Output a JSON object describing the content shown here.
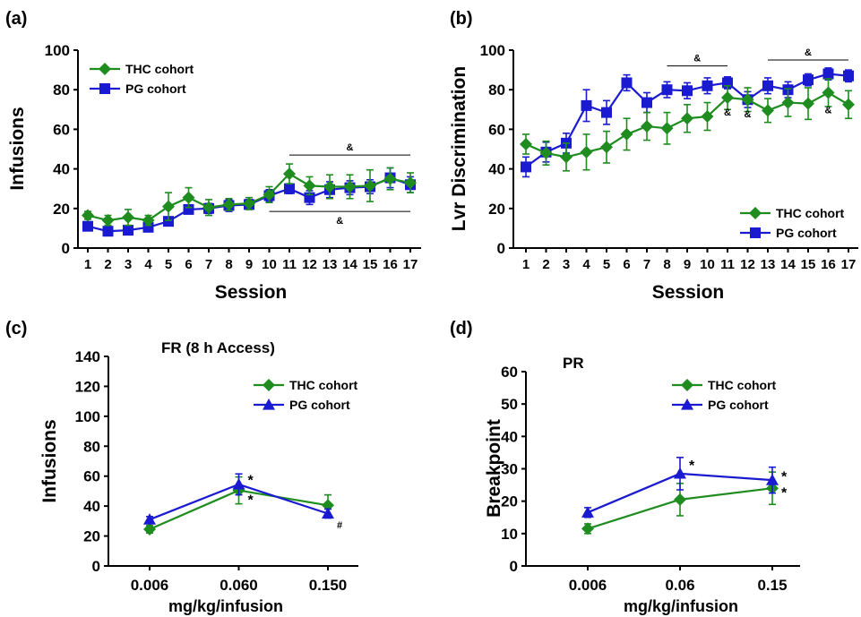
{
  "colors": {
    "thc": "#1e8c1e",
    "pg": "#1a1ad0",
    "axis": "#000000"
  },
  "chart_data": [
    {
      "id": "a",
      "type": "line",
      "panel_label": "(a)",
      "title": "",
      "xlabel": "Session",
      "ylabel": "Infusions",
      "ylim": [
        0,
        100
      ],
      "yticks": [
        "0",
        "20",
        "40",
        "60",
        "80",
        "100"
      ],
      "categories": [
        "1",
        "2",
        "3",
        "4",
        "5",
        "6",
        "7",
        "8",
        "9",
        "10",
        "11",
        "12",
        "13",
        "14",
        "15",
        "16",
        "17"
      ],
      "legend_position": "top-left",
      "grid": false,
      "series": [
        {
          "name": "THC cohort",
          "marker": "diamond",
          "color": "#1e8c1e",
          "values": [
            16.5,
            14,
            15.5,
            14,
            21,
            25.5,
            20.5,
            22,
            22.5,
            27,
            37.5,
            31.5,
            31,
            31,
            31.5,
            35,
            33
          ],
          "errors": [
            2,
            2.5,
            4,
            2.5,
            7,
            5,
            4,
            3,
            3,
            4,
            5,
            4.5,
            6,
            6,
            8,
            5.5,
            5
          ]
        },
        {
          "name": "PG cohort",
          "marker": "square",
          "color": "#1a1ad0",
          "values": [
            11,
            8.5,
            9,
            10.5,
            13.5,
            19.5,
            20,
            21.5,
            22,
            26.5,
            30,
            25.5,
            29.5,
            30.5,
            31,
            35.5,
            32
          ],
          "errors": [
            2,
            1.5,
            2,
            2,
            2,
            2,
            2.5,
            3,
            2.5,
            3,
            2.5,
            3.5,
            4,
            3.5,
            3.5,
            5,
            4
          ]
        }
      ],
      "annotations": [
        {
          "text": "&",
          "x_from": 11,
          "x_to": 17,
          "y": 47
        },
        {
          "text": "&",
          "x_from": 10,
          "x_to": 17,
          "y": 18.5
        }
      ]
    },
    {
      "id": "b",
      "type": "line",
      "panel_label": "(b)",
      "title": "",
      "xlabel": "Session",
      "ylabel": "Lvr Discrimination",
      "ylim": [
        0,
        100
      ],
      "yticks": [
        "0",
        "20",
        "40",
        "60",
        "80",
        "100"
      ],
      "categories": [
        "1",
        "2",
        "3",
        "4",
        "5",
        "6",
        "7",
        "8",
        "9",
        "10",
        "11",
        "12",
        "13",
        "14",
        "15",
        "16",
        "17"
      ],
      "legend_position": "bottom-right",
      "grid": false,
      "series": [
        {
          "name": "THC cohort",
          "marker": "diamond",
          "color": "#1e8c1e",
          "values": [
            52.5,
            48,
            46,
            48.5,
            51,
            57.5,
            61.5,
            60.5,
            65.5,
            66.5,
            76,
            75,
            69.5,
            73.5,
            73,
            78.5,
            72.5
          ],
          "errors": [
            5,
            6,
            7,
            9,
            8,
            8,
            7,
            8,
            7,
            7,
            6,
            6,
            6,
            7,
            8,
            7,
            7
          ]
        },
        {
          "name": "PG cohort",
          "marker": "square",
          "color": "#1a1ad0",
          "values": [
            41,
            48.5,
            53,
            72,
            68.5,
            83.5,
            73.5,
            80,
            79.5,
            82,
            83.5,
            75,
            82,
            80,
            85,
            88,
            87
          ],
          "errors": [
            5,
            5,
            5,
            8,
            6,
            4,
            5,
            4,
            4,
            4,
            3,
            4,
            4,
            4,
            3,
            3,
            3
          ]
        }
      ],
      "annotations": [
        {
          "text": "&",
          "x_from": 8,
          "x_to": 11,
          "y": 92
        },
        {
          "text": "&",
          "x_from": 13,
          "x_to": 17,
          "y": 95
        },
        {
          "text": "&",
          "x": 11,
          "y": 67
        },
        {
          "text": "&",
          "x": 12,
          "y": 66
        },
        {
          "text": "&",
          "x": 16,
          "y": 68
        }
      ]
    },
    {
      "id": "c",
      "type": "line",
      "panel_label": "(c)",
      "title": "FR (8 h Access)",
      "xlabel": "mg/kg/infusion",
      "ylabel": "Infusions",
      "ylim": [
        0,
        140
      ],
      "yticks": [
        "0",
        "20",
        "40",
        "60",
        "80",
        "100",
        "120",
        "140"
      ],
      "categories": [
        "0.006",
        "0.060",
        "0.150"
      ],
      "legend_position": "top-right",
      "grid": false,
      "series": [
        {
          "name": "THC cohort",
          "marker": "diamond",
          "color": "#1e8c1e",
          "values": [
            24.5,
            50.5,
            40.5
          ],
          "errors": [
            2.5,
            9,
            7
          ]
        },
        {
          "name": "PG cohort",
          "marker": "triangle",
          "color": "#1a1ad0",
          "values": [
            31,
            54.5,
            35
          ],
          "errors": [
            2,
            7,
            3
          ]
        }
      ],
      "annotations": [
        {
          "text": "*",
          "category": 1,
          "y": 57
        },
        {
          "text": "*",
          "category": 1,
          "y": 44
        },
        {
          "text": "#",
          "category": 2,
          "y": 28
        }
      ]
    },
    {
      "id": "d",
      "type": "line",
      "panel_label": "(d)",
      "title": "PR",
      "xlabel": "mg/kg/infusion",
      "ylabel": "Breakpoint",
      "ylim": [
        0,
        60
      ],
      "yticks": [
        "0",
        "10",
        "20",
        "30",
        "40",
        "50",
        "60"
      ],
      "categories": [
        "0.006",
        "0.06",
        "0.15"
      ],
      "legend_position": "top-right",
      "grid": false,
      "series": [
        {
          "name": "THC cohort",
          "marker": "diamond",
          "color": "#1e8c1e",
          "values": [
            11.5,
            20.5,
            24
          ],
          "errors": [
            1.5,
            5,
            5
          ]
        },
        {
          "name": "PG cohort",
          "marker": "triangle",
          "color": "#1a1ad0",
          "values": [
            16.5,
            28.5,
            26.5
          ],
          "errors": [
            1.5,
            5,
            4
          ]
        }
      ],
      "annotations": [
        {
          "text": "*",
          "category": 1,
          "y": 31
        },
        {
          "text": "*",
          "category": 2,
          "y": 27.5
        },
        {
          "text": "*",
          "category": 2,
          "y": 22.5
        }
      ]
    }
  ]
}
